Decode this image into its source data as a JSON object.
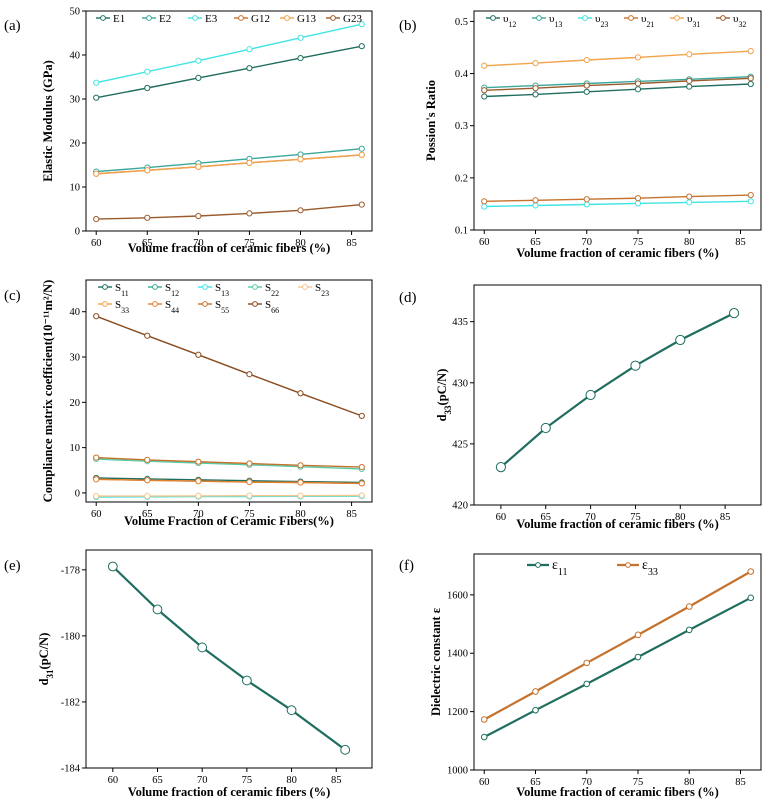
{
  "chart_data": [
    {
      "panel": "(a)",
      "type": "line",
      "xlabel": "Volume fraction of ceramic fibers (%)",
      "ylabel": "Elastic Modulus (GPa)",
      "xlim": [
        59,
        87
      ],
      "ylim": [
        0,
        50
      ],
      "xticks": [
        60,
        65,
        70,
        75,
        80,
        85
      ],
      "yticks": [
        0,
        10,
        20,
        30,
        40,
        50
      ],
      "grid": false,
      "legend": "top, 6 columns",
      "x": [
        60,
        65,
        70,
        75,
        80,
        86
      ],
      "series": [
        {
          "name": "E1",
          "color": "#1f6e60",
          "values": [
            30.3,
            32.5,
            34.8,
            37.0,
            39.3,
            42.0
          ]
        },
        {
          "name": "E2",
          "color": "#3aa79b",
          "values": [
            13.5,
            14.4,
            15.4,
            16.4,
            17.4,
            18.7
          ]
        },
        {
          "name": "E3",
          "color": "#41e4e4",
          "values": [
            33.7,
            36.2,
            38.7,
            41.3,
            43.9,
            47.0
          ]
        },
        {
          "name": "G12",
          "color": "#c4722d",
          "values": [
            13.0,
            13.8,
            14.6,
            15.5,
            16.3,
            17.3
          ]
        },
        {
          "name": "G13",
          "color": "#f2a34c",
          "values": [
            13.0,
            13.8,
            14.6,
            15.5,
            16.3,
            17.3
          ]
        },
        {
          "name": "G23",
          "color": "#9a5a2c",
          "values": [
            2.7,
            3.0,
            3.4,
            4.0,
            4.7,
            6.0
          ]
        }
      ]
    },
    {
      "panel": "(b)",
      "type": "line",
      "xlabel": "Volume fraction of ceramic fibers (%)",
      "ylabel": "Possion's Ratio",
      "xlim": [
        59,
        87
      ],
      "ylim": [
        0.1,
        0.52
      ],
      "xticks": [
        60,
        65,
        70,
        75,
        80,
        85
      ],
      "yticks": [
        0.1,
        0.2,
        0.3,
        0.4,
        0.5
      ],
      "grid": false,
      "legend": "top, 6 columns",
      "x": [
        60,
        65,
        70,
        75,
        80,
        86
      ],
      "series": [
        {
          "name": "υ12",
          "base": "υ",
          "sub": "12",
          "color": "#1f6e60",
          "values": [
            0.356,
            0.36,
            0.365,
            0.37,
            0.375,
            0.38
          ]
        },
        {
          "name": "υ13",
          "base": "υ",
          "sub": "13",
          "color": "#3aa79b",
          "values": [
            0.373,
            0.377,
            0.381,
            0.385,
            0.389,
            0.394
          ]
        },
        {
          "name": "υ23",
          "base": "υ",
          "sub": "23",
          "color": "#41e4e4",
          "values": [
            0.145,
            0.147,
            0.149,
            0.151,
            0.153,
            0.155
          ]
        },
        {
          "name": "υ21",
          "base": "υ",
          "sub": "21",
          "color": "#c4722d",
          "values": [
            0.155,
            0.157,
            0.159,
            0.161,
            0.164,
            0.167
          ]
        },
        {
          "name": "υ31",
          "base": "υ",
          "sub": "31",
          "color": "#f2a34c",
          "values": [
            0.415,
            0.42,
            0.426,
            0.431,
            0.437,
            0.443
          ]
        },
        {
          "name": "υ32",
          "base": "υ",
          "sub": "32",
          "color": "#9a5a2c",
          "values": [
            0.368,
            0.372,
            0.377,
            0.381,
            0.386,
            0.391
          ]
        }
      ]
    },
    {
      "panel": "(c)",
      "type": "line",
      "xlabel": "Volume Fraction of Ceramic Fibers(%)",
      "ylabel": "Compliance matrix coefficient(10⁻¹¹m²/N)",
      "xlim": [
        59,
        87
      ],
      "ylim": [
        -2,
        47
      ],
      "xticks": [
        60,
        65,
        70,
        75,
        80,
        85
      ],
      "yticks": [
        0,
        10,
        20,
        30,
        40
      ],
      "grid": false,
      "legend": "top, 5 columns x 2 rows",
      "x": [
        60,
        65,
        70,
        75,
        80,
        86
      ],
      "series": [
        {
          "name": "S11",
          "base": "S",
          "sub": "11",
          "color": "#1f6e60",
          "values": [
            3.3,
            3.1,
            2.9,
            2.7,
            2.5,
            2.3
          ]
        },
        {
          "name": "S12",
          "base": "S",
          "sub": "12",
          "color": "#3aa79b",
          "values": [
            -0.8,
            -0.8,
            -0.75,
            -0.7,
            -0.7,
            -0.65
          ]
        },
        {
          "name": "S13",
          "base": "S",
          "sub": "13",
          "color": "#41e4e4",
          "values": [
            -0.9,
            -0.85,
            -0.8,
            -0.78,
            -0.75,
            -0.7
          ]
        },
        {
          "name": "S22",
          "base": "S",
          "sub": "22",
          "color": "#5cc9a6",
          "values": [
            7.5,
            7.0,
            6.6,
            6.2,
            5.8,
            5.3
          ]
        },
        {
          "name": "S23",
          "base": "S",
          "sub": "23",
          "color": "#f7c68c",
          "values": [
            -0.7,
            -0.7,
            -0.65,
            -0.6,
            -0.6,
            -0.55
          ]
        },
        {
          "name": "S33",
          "base": "S",
          "sub": "33",
          "color": "#f2a34c",
          "values": [
            3.0,
            2.8,
            2.6,
            2.4,
            2.3,
            2.1
          ]
        },
        {
          "name": "S44",
          "base": "S",
          "sub": "44",
          "color": "#e07f30",
          "values": [
            3.0,
            2.8,
            2.6,
            2.4,
            2.3,
            2.1
          ]
        },
        {
          "name": "S55",
          "base": "S",
          "sub": "55",
          "color": "#c4722d",
          "values": [
            7.8,
            7.3,
            6.9,
            6.5,
            6.1,
            5.7
          ]
        },
        {
          "name": "S66",
          "base": "S",
          "sub": "66",
          "color": "#8a4a1e",
          "values": [
            39.0,
            34.7,
            30.5,
            26.2,
            22.0,
            17.0
          ]
        }
      ]
    },
    {
      "panel": "(d)",
      "type": "line",
      "xlabel": "Volume fraction of ceramic fibers (%)",
      "ylabel": "d33(pC/N)",
      "ylabel_base": "d",
      "ylabel_sub": "33",
      "ylabel_rest": "(pC/N)",
      "xlim": [
        57,
        89
      ],
      "ylim": [
        420,
        438
      ],
      "xticks": [
        60,
        65,
        70,
        75,
        80,
        85
      ],
      "yticks": [
        420,
        425,
        430,
        435
      ],
      "grid": false,
      "x": [
        60,
        65,
        70,
        75,
        80,
        86
      ],
      "series": [
        {
          "name": "d33",
          "color": "#1f6e60",
          "values": [
            423.1,
            426.3,
            429.0,
            431.4,
            433.5,
            435.7
          ]
        }
      ]
    },
    {
      "panel": "(e)",
      "type": "line",
      "xlabel": "Volume fraction of ceramic fibers (%)",
      "ylabel": "d31(pC/N)",
      "ylabel_base": "d",
      "ylabel_sub": "31",
      "ylabel_rest": "(pC/N)",
      "xlim": [
        57,
        89
      ],
      "ylim": [
        -184,
        -177.4
      ],
      "xticks": [
        60,
        65,
        70,
        75,
        80,
        85
      ],
      "yticks": [
        -184,
        -182,
        -180,
        -178
      ],
      "grid": false,
      "x": [
        60,
        65,
        70,
        75,
        80,
        86
      ],
      "series": [
        {
          "name": "d31",
          "color": "#1f6e60",
          "values": [
            -177.9,
            -179.2,
            -180.35,
            -181.35,
            -182.25,
            -183.45
          ]
        }
      ]
    },
    {
      "panel": "(f)",
      "type": "line",
      "xlabel": "Volume fraction of ceramic fibers (%)",
      "ylabel": "Dielectric constant  ε",
      "xlim": [
        59,
        87
      ],
      "ylim": [
        1000,
        1740
      ],
      "xticks": [
        60,
        65,
        70,
        75,
        80,
        85
      ],
      "yticks": [
        1000,
        1200,
        1400,
        1600
      ],
      "grid": false,
      "legend": "top-left, 2 columns",
      "x": [
        60,
        65,
        70,
        75,
        80,
        86
      ],
      "series": [
        {
          "name": "ε11",
          "base": "ε",
          "sub": "11",
          "color": "#1f6e60",
          "values": [
            1113,
            1205,
            1295,
            1387,
            1480,
            1590
          ]
        },
        {
          "name": "ε33",
          "base": "ε",
          "sub": "33",
          "color": "#c4722d",
          "values": [
            1173,
            1269,
            1367,
            1463,
            1560,
            1680
          ]
        }
      ]
    }
  ]
}
